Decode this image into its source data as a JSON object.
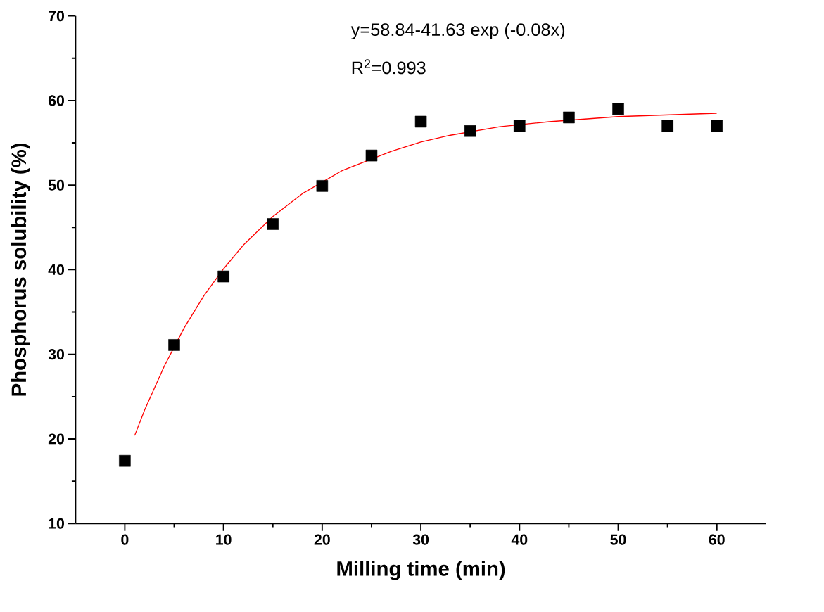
{
  "chart_data": {
    "type": "scatter",
    "xlabel": "Milling time (min)",
    "ylabel": "Phosphorus solubility (%)",
    "annotations": [
      "y=58.84-41.63 exp (-0.08x)",
      "R$^{2}$=0.993"
    ],
    "xlim": [
      -5,
      65
    ],
    "ylim": [
      10,
      70
    ],
    "xticks": [
      0,
      10,
      20,
      30,
      40,
      50,
      60
    ],
    "yticks": [
      10,
      20,
      30,
      40,
      50,
      60,
      70
    ],
    "grid": false,
    "series": [
      {
        "marker": "square",
        "color": "#000000",
        "x": [
          0,
          5,
          10,
          15,
          20,
          25,
          30,
          35,
          40,
          45,
          50,
          55,
          60
        ],
        "values": [
          17.4,
          31.1,
          39.2,
          45.4,
          49.9,
          53.5,
          57.5,
          56.4,
          57.0,
          58.0,
          59.0,
          57.0,
          57.0
        ]
      },
      {
        "type": "line",
        "marker": "none",
        "color": "#ff0000",
        "x": [
          1,
          2,
          4,
          6,
          8,
          10,
          12,
          15,
          18,
          22,
          27,
          30,
          33,
          38,
          43,
          50,
          55,
          60
        ],
        "values": [
          20.4,
          23.4,
          28.6,
          33.1,
          36.9,
          40.1,
          42.9,
          46.3,
          49.0,
          51.7,
          54.0,
          55.1,
          55.9,
          56.9,
          57.5,
          58.1,
          58.3,
          58.5
        ]
      }
    ]
  }
}
